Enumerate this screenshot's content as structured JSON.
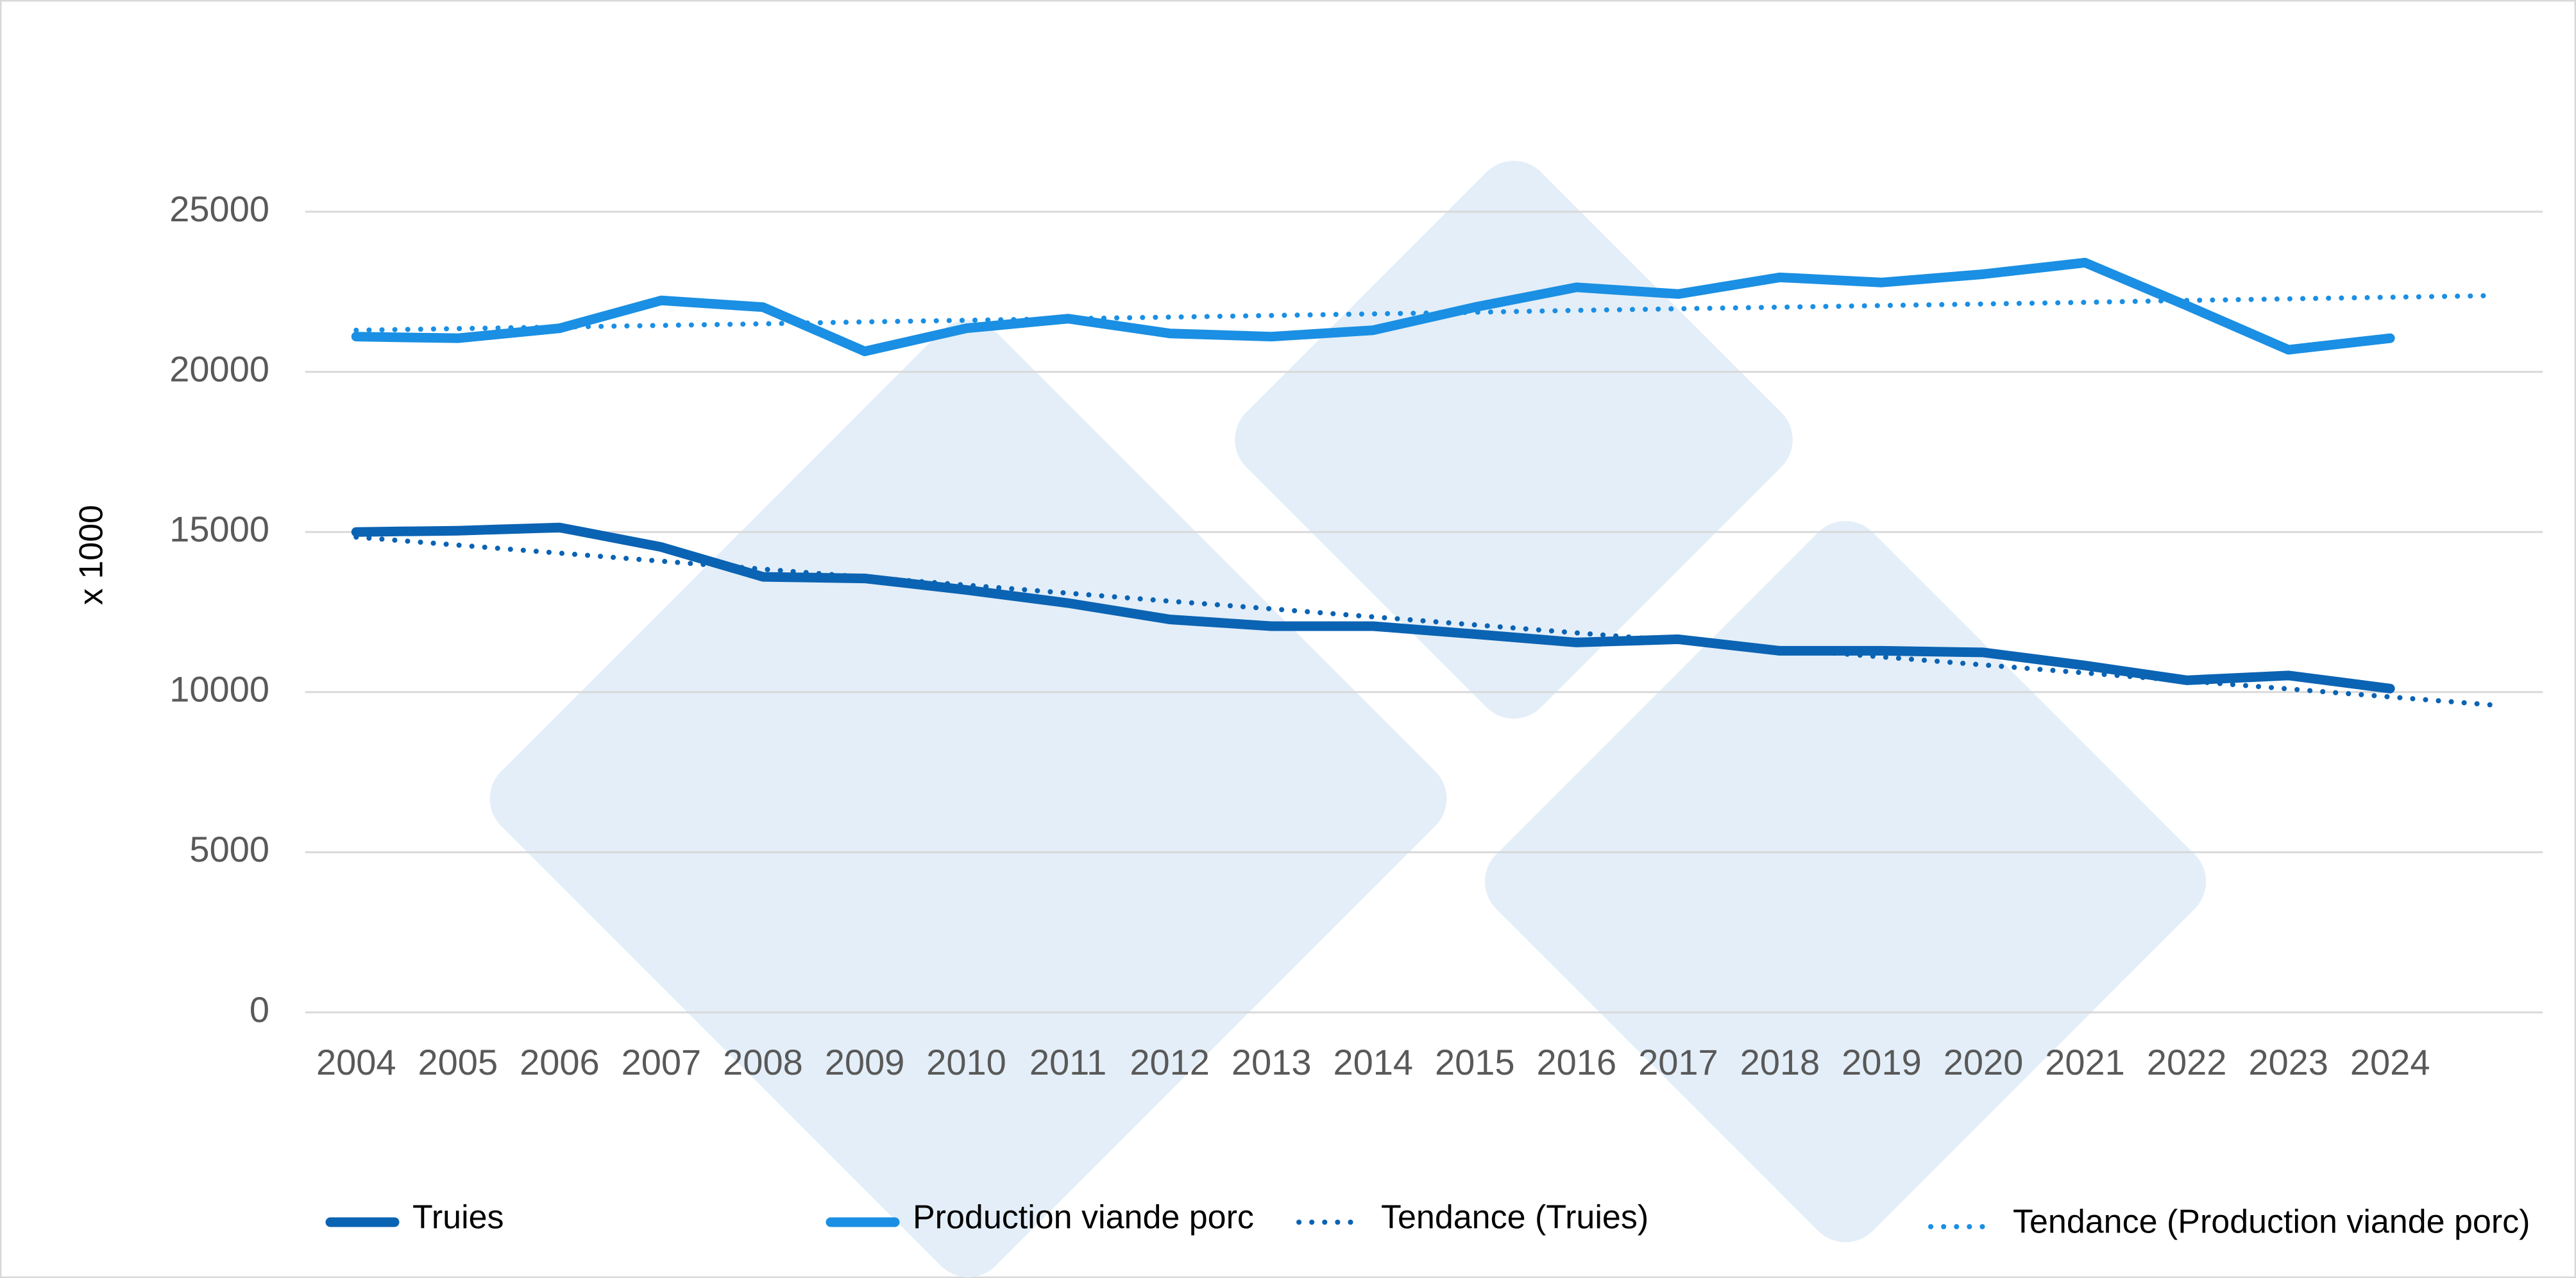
{
  "chart_data": {
    "type": "line",
    "y_label": "x 1000",
    "categories": [
      "2004",
      "2005",
      "2006",
      "2007",
      "2008",
      "2009",
      "2010",
      "2011",
      "2012",
      "2013",
      "2014",
      "2015",
      "2016",
      "2017",
      "2018",
      "2019",
      "2020",
      "2021",
      "2022",
      "2023",
      "2024",
      null
    ],
    "series": [
      {
        "name": "Truies",
        "color": "#0b63b3",
        "style": "solid",
        "values": [
          15000,
          15040,
          15140,
          14530,
          13600,
          13550,
          13190,
          12780,
          12270,
          12060,
          12060,
          11810,
          11550,
          11650,
          11290,
          11290,
          11240,
          10830,
          10370,
          10520,
          10110,
          null
        ]
      },
      {
        "name": "Production viande porc",
        "color": "#1a8fe3",
        "style": "solid",
        "values": [
          21100,
          21050,
          21360,
          22230,
          22020,
          20640,
          21360,
          21660,
          21200,
          21100,
          21300,
          22020,
          22640,
          22430,
          22950,
          22790,
          23050,
          23410,
          22070,
          20690,
          21050,
          null
        ]
      },
      {
        "name": "Tendance (Truies)",
        "color": "#0b63b3",
        "style": "dotted",
        "values": [
          14840,
          14590,
          14340,
          14090,
          13840,
          13590,
          13340,
          13090,
          12840,
          12600,
          12350,
          12100,
          11850,
          11600,
          11350,
          11100,
          10850,
          10600,
          10350,
          10100,
          9850,
          9600
        ]
      },
      {
        "name": "Tendance (Production viande porc)",
        "color": "#1a8fe3",
        "style": "dotted",
        "values": [
          21300,
          21350,
          21400,
          21450,
          21500,
          21560,
          21610,
          21660,
          21710,
          21760,
          21810,
          21860,
          21920,
          21970,
          22020,
          22070,
          22120,
          22170,
          22230,
          22280,
          22330,
          22380
        ]
      }
    ],
    "ylim": [
      0,
      25000
    ],
    "yticks": [
      0,
      5000,
      10000,
      15000,
      20000,
      25000
    ],
    "grid": true
  }
}
